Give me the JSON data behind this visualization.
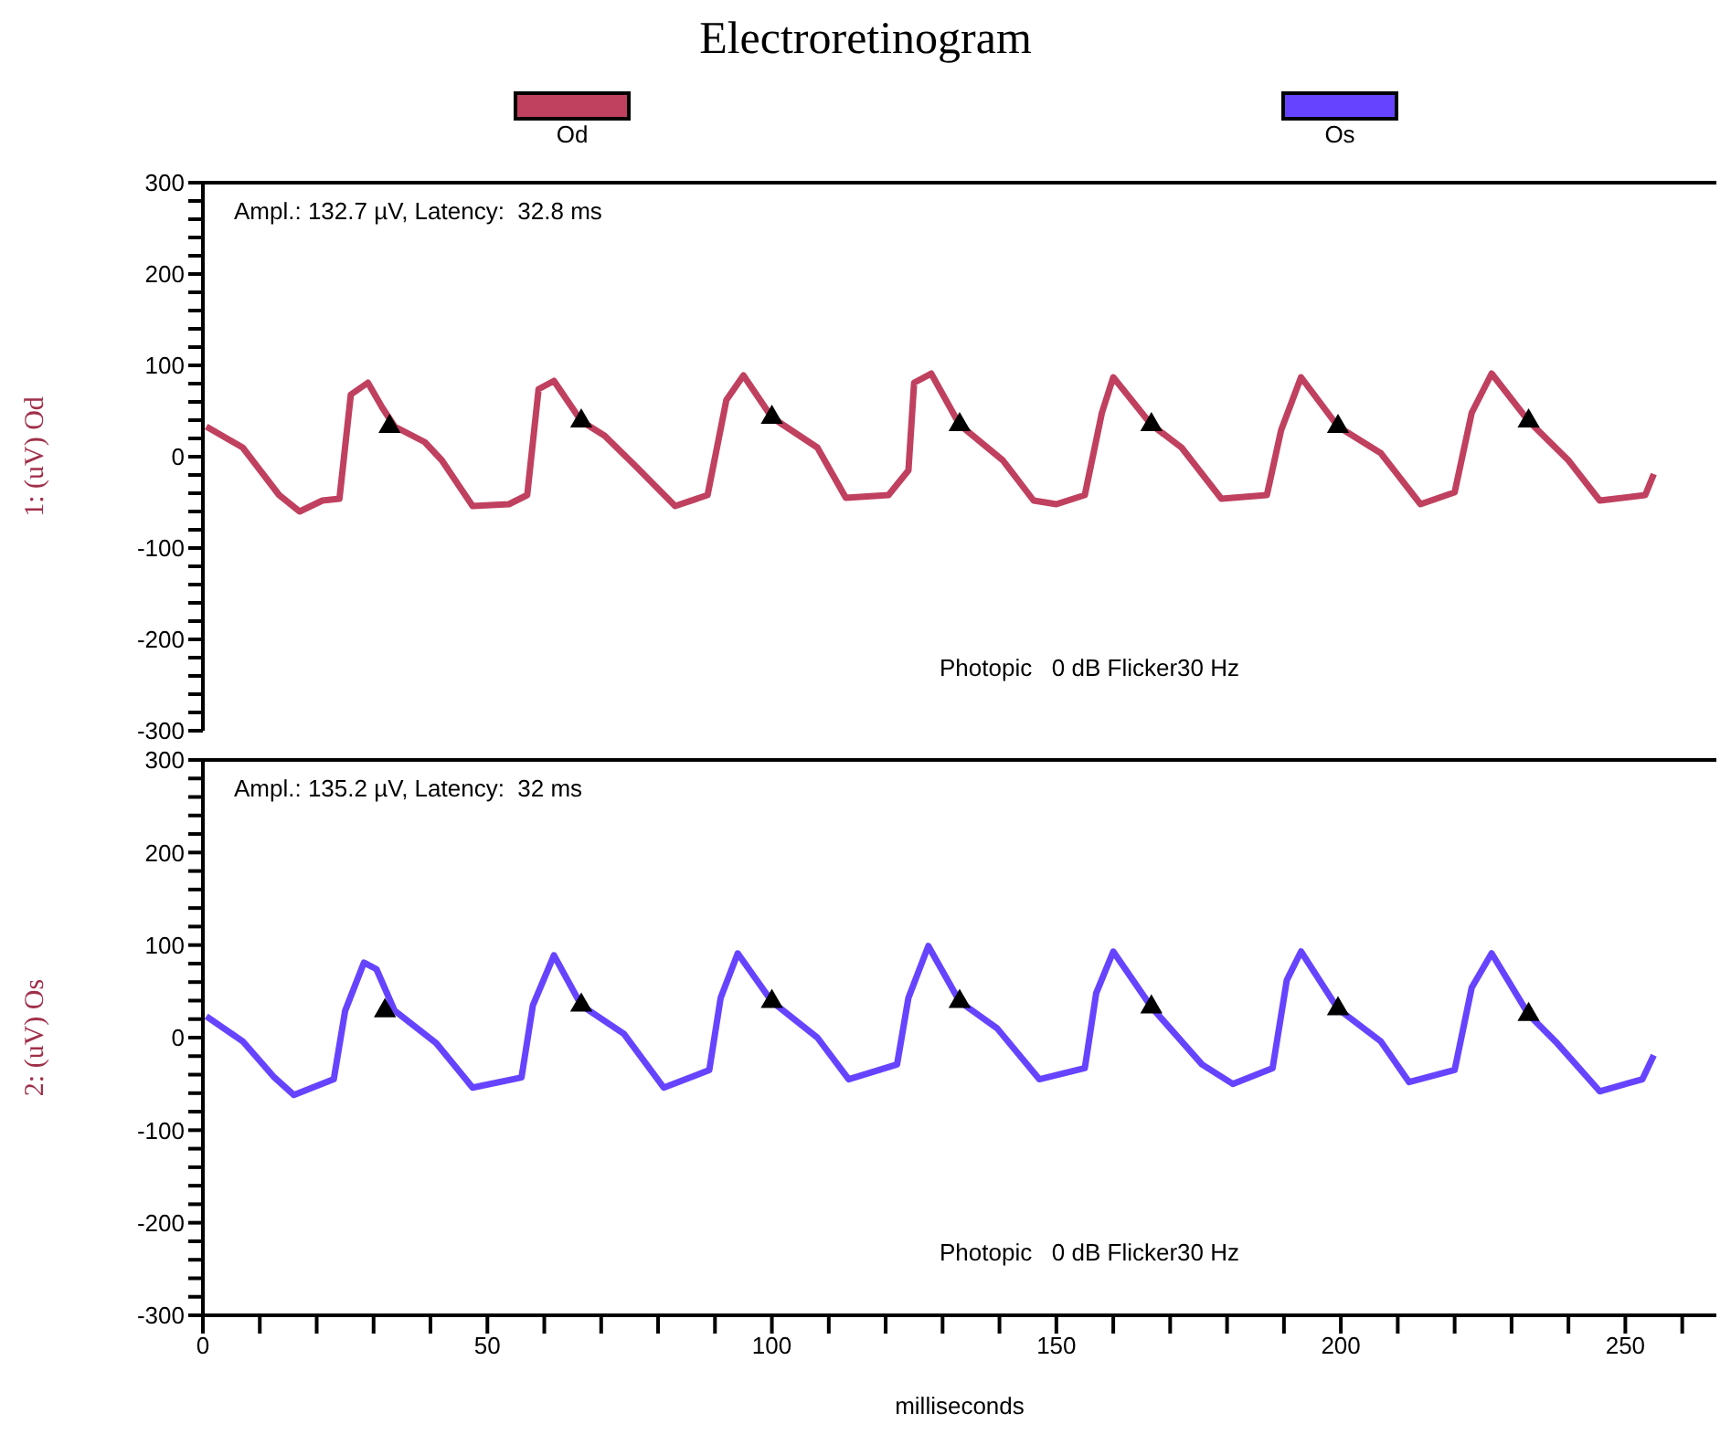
{
  "chart_data": [
    {
      "type": "line",
      "title": "Electroretinogram",
      "ylabel": "1: (uV) Od",
      "legend": "top",
      "tick_labels": "y",
      "xlim": [
        0,
        266
      ],
      "ylim": [
        -300,
        300
      ],
      "yticks": [
        300,
        {
          "value": 280,
          "label": null
        },
        {
          "value": 260,
          "label": null
        },
        {
          "value": 240,
          "label": null
        },
        {
          "value": 220,
          "label": null
        },
        200,
        {
          "value": 180,
          "label": null
        },
        {
          "value": 160,
          "label": null
        },
        {
          "value": 140,
          "label": null
        },
        {
          "value": 120,
          "label": null
        },
        100,
        {
          "value": 80,
          "label": null
        },
        {
          "value": 60,
          "label": null
        },
        {
          "value": 40,
          "label": null
        },
        {
          "value": 20,
          "label": null
        },
        0,
        {
          "value": -20,
          "label": null
        },
        {
          "value": -40,
          "label": null
        },
        {
          "value": -60,
          "label": null
        },
        {
          "value": -80,
          "label": null
        },
        -100,
        {
          "value": -120,
          "label": null
        },
        {
          "value": -140,
          "label": null
        },
        {
          "value": -160,
          "label": null
        },
        {
          "value": -180,
          "label": null
        },
        -200,
        {
          "value": -220,
          "label": null
        },
        {
          "value": -240,
          "label": null
        },
        {
          "value": -260,
          "label": null
        },
        {
          "value": -280,
          "label": null
        },
        -300
      ],
      "annotations": [
        "Ampl.: 132.7 µV, Latency:  32.8 ms",
        "Photopic   0 dB Flicker30 Hz"
      ],
      "series": [
        {
          "name": "Od",
          "type": "line",
          "color": "#c0405f",
          "x": [
            0.6,
            7,
            13.4,
            17,
            21,
            24,
            26,
            29,
            31.5,
            33.7,
            39,
            42,
            47.4,
            53.8,
            57,
            59,
            61.7,
            66.5,
            70.6,
            76,
            83,
            88.7,
            92,
            95,
            100,
            108,
            113,
            120.5,
            124,
            125,
            128,
            133,
            140.6,
            146,
            150,
            155,
            158,
            160,
            166.7,
            172,
            179,
            187,
            189.5,
            193,
            199.5,
            207,
            214,
            220,
            223,
            226.5,
            233,
            240,
            245.5,
            253.5,
            255
          ],
          "values": [
            33,
            10,
            -42,
            -60,
            -48,
            -46,
            68,
            81,
            54,
            33,
            16,
            -4,
            -54,
            -52,
            -42,
            74,
            83,
            39,
            23,
            -10,
            -54,
            -42,
            62,
            89,
            43,
            10,
            -45,
            -42,
            -15,
            81,
            91,
            35,
            -4,
            -48,
            -52,
            -42,
            48,
            87,
            35,
            10,
            -46,
            -42,
            29,
            87,
            33,
            4,
            -52,
            -39,
            48,
            91,
            39,
            -4,
            -48,
            -42,
            -19
          ]
        },
        {
          "type": "scatter",
          "color": "#000000",
          "marker": "triangle",
          "x": [
            32.8,
            66.5,
            100,
            133,
            166.7,
            199.5,
            233
          ],
          "values": [
            33,
            39,
            43,
            35,
            35,
            33,
            39
          ]
        }
      ]
    },
    {
      "type": "line",
      "ylabel": "2: (uV) Os",
      "xlabel": "milliseconds",
      "legend": "top",
      "xlim": [
        0,
        266
      ],
      "ylim": [
        -300,
        300
      ],
      "xticks": [
        0,
        {
          "value": 10,
          "label": null
        },
        {
          "value": 20,
          "label": null
        },
        {
          "value": 30,
          "label": null
        },
        {
          "value": 40,
          "label": null
        },
        50,
        {
          "value": 60,
          "label": null
        },
        {
          "value": 70,
          "label": null
        },
        {
          "value": 80,
          "label": null
        },
        {
          "value": 90,
          "label": null
        },
        100,
        {
          "value": 110,
          "label": null
        },
        {
          "value": 120,
          "label": null
        },
        {
          "value": 130,
          "label": null
        },
        {
          "value": 140,
          "label": null
        },
        150,
        {
          "value": 160,
          "label": null
        },
        {
          "value": 170,
          "label": null
        },
        {
          "value": 180,
          "label": null
        },
        {
          "value": 190,
          "label": null
        },
        200,
        {
          "value": 210,
          "label": null
        },
        {
          "value": 220,
          "label": null
        },
        {
          "value": 230,
          "label": null
        },
        {
          "value": 240,
          "label": null
        },
        250,
        {
          "value": 260,
          "label": null
        }
      ],
      "yticks": [
        300,
        {
          "value": 280,
          "label": null
        },
        {
          "value": 260,
          "label": null
        },
        {
          "value": 240,
          "label": null
        },
        {
          "value": 220,
          "label": null
        },
        200,
        {
          "value": 180,
          "label": null
        },
        {
          "value": 160,
          "label": null
        },
        {
          "value": 140,
          "label": null
        },
        {
          "value": 120,
          "label": null
        },
        100,
        {
          "value": 80,
          "label": null
        },
        {
          "value": 60,
          "label": null
        },
        {
          "value": 40,
          "label": null
        },
        {
          "value": 20,
          "label": null
        },
        0,
        {
          "value": -20,
          "label": null
        },
        {
          "value": -40,
          "label": null
        },
        {
          "value": -60,
          "label": null
        },
        {
          "value": -80,
          "label": null
        },
        -100,
        {
          "value": -120,
          "label": null
        },
        {
          "value": -140,
          "label": null
        },
        {
          "value": -160,
          "label": null
        },
        {
          "value": -180,
          "label": null
        },
        -200,
        {
          "value": -220,
          "label": null
        },
        {
          "value": -240,
          "label": null
        },
        {
          "value": -260,
          "label": null
        },
        {
          "value": -280,
          "label": null
        },
        -300
      ],
      "annotations": [
        "Ampl.: 135.2 µV, Latency:  32 ms",
        "Photopic   0 dB Flicker30 Hz"
      ],
      "series": [
        {
          "name": "Os",
          "type": "line",
          "color": "#6644ff",
          "x": [
            0.6,
            7,
            12.4,
            16,
            23,
            25,
            28.3,
            30.5,
            33.7,
            41,
            47.4,
            56,
            58,
            61.7,
            66.5,
            74,
            81,
            89,
            91,
            94,
            100,
            108,
            113.5,
            122,
            124,
            127.5,
            133,
            139.6,
            147,
            155,
            157,
            160,
            166.7,
            175.6,
            181,
            188,
            190.5,
            193,
            199.5,
            207,
            212,
            220,
            223,
            226.5,
            233,
            238,
            245.5,
            253,
            255
          ],
          "values": [
            23,
            -4,
            -42,
            -62,
            -45,
            29,
            81,
            74,
            29,
            -6,
            -54,
            -43,
            35,
            89,
            35,
            4,
            -54,
            -35,
            43,
            91,
            39,
            0,
            -45,
            -29,
            43,
            99,
            39,
            10,
            -45,
            -33,
            48,
            93,
            33,
            -29,
            -50,
            -33,
            62,
            93,
            31,
            -4,
            -48,
            -35,
            54,
            91,
            25,
            -6,
            -58,
            -45,
            -19
          ]
        },
        {
          "type": "scatter",
          "color": "#000000",
          "marker": "triangle",
          "x": [
            32,
            66.5,
            100,
            133,
            166.7,
            199.5,
            233
          ],
          "values": [
            29,
            35,
            39,
            39,
            33,
            31,
            25
          ]
        }
      ]
    }
  ]
}
